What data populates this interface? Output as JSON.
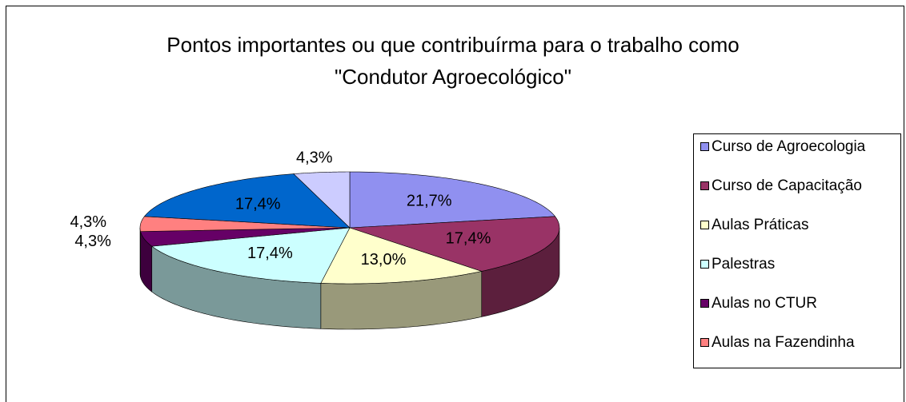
{
  "chart_data": {
    "type": "pie",
    "title": "Pontos importantes ou que contribuírma para o trabalho como \"Condutor Agroecológico\"",
    "categories": [
      "Curso de Agroecologia",
      "Curso de Capacitação",
      "Aulas Práticas",
      "Palestras",
      "Aulas no CTUR",
      "Aulas na Fazendinha",
      null,
      null
    ],
    "values": [
      21.7,
      17.4,
      13.0,
      17.4,
      4.3,
      4.3,
      17.4,
      4.3
    ],
    "value_labels": [
      "21,7%",
      "17,4%",
      "13,0%",
      "17,4%",
      "4,3%",
      "4,3%",
      "17,4%",
      "4,3%"
    ],
    "colors": [
      "#9090f0",
      "#993366",
      "#ffffcc",
      "#ccffff",
      "#660066",
      "#ff8080",
      "#0066cc",
      "#ccccff"
    ],
    "legend": "right"
  }
}
